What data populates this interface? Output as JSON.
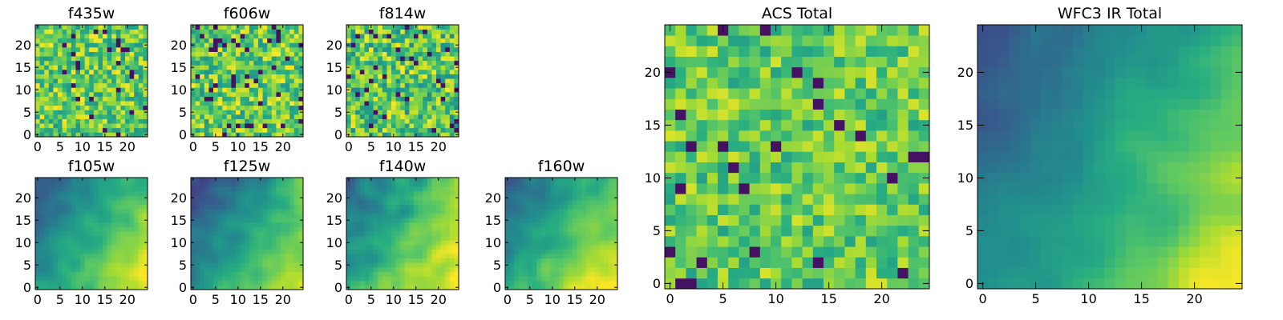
{
  "chart_data": [
    {
      "id": "f435w",
      "type": "heatmap",
      "title": "f435w",
      "grid_size": [
        25,
        25
      ],
      "xlim": [
        -0.5,
        24.5
      ],
      "ylim": [
        -0.5,
        24.5
      ],
      "xticks": [
        0,
        5,
        10,
        15,
        20
      ],
      "yticks": [
        0,
        5,
        10,
        15,
        20
      ],
      "colormap": "viridis",
      "pattern": "uniform",
      "mean_level": 0.75,
      "spread": 0.25
    },
    {
      "id": "f606w",
      "type": "heatmap",
      "title": "f606w",
      "grid_size": [
        25,
        25
      ],
      "xlim": [
        -0.5,
        24.5
      ],
      "ylim": [
        -0.5,
        24.5
      ],
      "xticks": [
        0,
        5,
        10,
        15,
        20
      ],
      "yticks": [
        0,
        5,
        10,
        15,
        20
      ],
      "colormap": "viridis",
      "pattern": "uniform",
      "mean_level": 0.75,
      "spread": 0.25
    },
    {
      "id": "f814w",
      "type": "heatmap",
      "title": "f814w",
      "grid_size": [
        25,
        25
      ],
      "xlim": [
        -0.5,
        24.5
      ],
      "ylim": [
        -0.5,
        24.5
      ],
      "xticks": [
        0,
        5,
        10,
        15,
        20
      ],
      "yticks": [
        0,
        5,
        10,
        15,
        20
      ],
      "colormap": "viridis",
      "pattern": "uniform",
      "mean_level": 0.72,
      "spread": 0.28
    },
    {
      "id": "f105w",
      "type": "heatmap",
      "title": "f105w",
      "grid_size": [
        25,
        25
      ],
      "xlim": [
        -0.5,
        24.5
      ],
      "ylim": [
        -0.5,
        24.5
      ],
      "xticks": [
        0,
        5,
        10,
        15,
        20
      ],
      "yticks": [
        0,
        5,
        10,
        15,
        20
      ],
      "colormap": "viridis",
      "pattern": "gradient",
      "mean_level": 0.55,
      "spread": 0.2
    },
    {
      "id": "f125w",
      "type": "heatmap",
      "title": "f125w",
      "grid_size": [
        25,
        25
      ],
      "xlim": [
        -0.5,
        24.5
      ],
      "ylim": [
        -0.5,
        24.5
      ],
      "xticks": [
        0,
        5,
        10,
        15,
        20
      ],
      "yticks": [
        0,
        5,
        10,
        15,
        20
      ],
      "colormap": "viridis",
      "pattern": "gradient",
      "mean_level": 0.5,
      "spread": 0.22
    },
    {
      "id": "f140w",
      "type": "heatmap",
      "title": "f140w",
      "grid_size": [
        25,
        25
      ],
      "xlim": [
        -0.5,
        24.5
      ],
      "ylim": [
        -0.5,
        24.5
      ],
      "xticks": [
        0,
        5,
        10,
        15,
        20
      ],
      "yticks": [
        0,
        5,
        10,
        15,
        20
      ],
      "colormap": "viridis",
      "pattern": "gradient",
      "mean_level": 0.6,
      "spread": 0.25
    },
    {
      "id": "f160w",
      "type": "heatmap",
      "title": "f160w",
      "grid_size": [
        25,
        25
      ],
      "xlim": [
        -0.5,
        24.5
      ],
      "ylim": [
        -0.5,
        24.5
      ],
      "xticks": [
        0,
        5,
        10,
        15,
        20
      ],
      "yticks": [
        0,
        5,
        10,
        15,
        20
      ],
      "colormap": "viridis",
      "pattern": "gradient",
      "mean_level": 0.58,
      "spread": 0.22
    },
    {
      "id": "acs_total",
      "type": "heatmap",
      "title": "ACS Total",
      "grid_size": [
        25,
        25
      ],
      "xlim": [
        -0.5,
        24.5
      ],
      "ylim": [
        -0.5,
        24.5
      ],
      "xticks": [
        0,
        5,
        10,
        15,
        20
      ],
      "yticks": [
        0,
        5,
        10,
        15,
        20
      ],
      "colormap": "viridis",
      "pattern": "uniform",
      "mean_level": 0.75,
      "spread": 0.2
    },
    {
      "id": "wfc3_ir_total",
      "type": "heatmap",
      "title": "WFC3 IR Total",
      "grid_size": [
        25,
        25
      ],
      "xlim": [
        -0.5,
        24.5
      ],
      "ylim": [
        -0.5,
        24.5
      ],
      "xticks": [
        0,
        5,
        10,
        15,
        20
      ],
      "yticks": [
        0,
        5,
        10,
        15,
        20
      ],
      "colormap": "viridis",
      "pattern": "gradient",
      "mean_level": 0.5,
      "spread": 0.18
    }
  ]
}
